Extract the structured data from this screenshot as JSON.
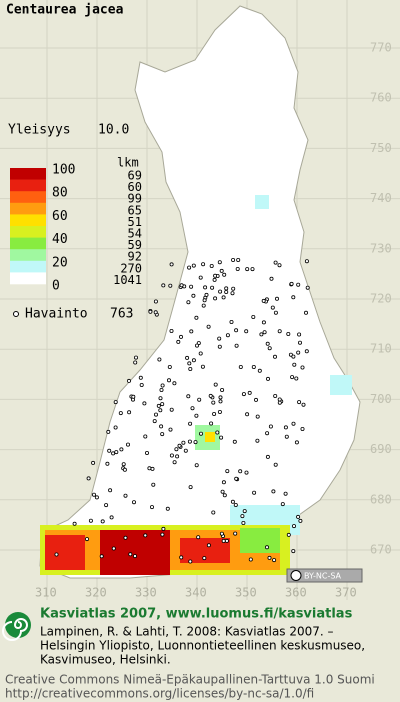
{
  "title": "Centaurea jacea",
  "frequency": {
    "label": "Yleisyys",
    "value": "10.0"
  },
  "legend": {
    "scale_labels": [
      "100",
      "80",
      "60",
      "40",
      "20",
      "0"
    ],
    "count_header": "lkm",
    "counts": [
      69,
      60,
      99,
      65,
      51,
      54,
      59,
      92,
      270,
      1041
    ],
    "colors": [
      "#c00000",
      "#e82010",
      "#ff6010",
      "#ff9c10",
      "#ffe000",
      "#d8f020",
      "#88ec40",
      "#a0f8a0",
      "#c0f8f8",
      "#ffffff"
    ]
  },
  "observations": {
    "label": "Havainto",
    "value": 763
  },
  "grid": {
    "y_labels": [
      770,
      760,
      750,
      740,
      730,
      720,
      710,
      700,
      690,
      680,
      670
    ],
    "x_labels": [
      310,
      320,
      330,
      340,
      350,
      360,
      370
    ]
  },
  "license_badge": "BY-NC-SA",
  "footer": {
    "heading": "Kasviatlas 2007, www.luomus.fi/kasviatlas",
    "citation": [
      "Lampinen, R. & Lahti, T. 2008: Kasviatlas 2007. –",
      "Helsingin Yliopisto, Luonnontieteellinen keskusmuseo,",
      "Kasvimuseo, Helsinki."
    ],
    "license": [
      "Creative Commons Nimeä-Epäkaupallinen-Tarttuva 1.0 Suomi",
      "http://creativecommons.org/licenses/by-nc-sa/1.0/fi"
    ]
  }
}
